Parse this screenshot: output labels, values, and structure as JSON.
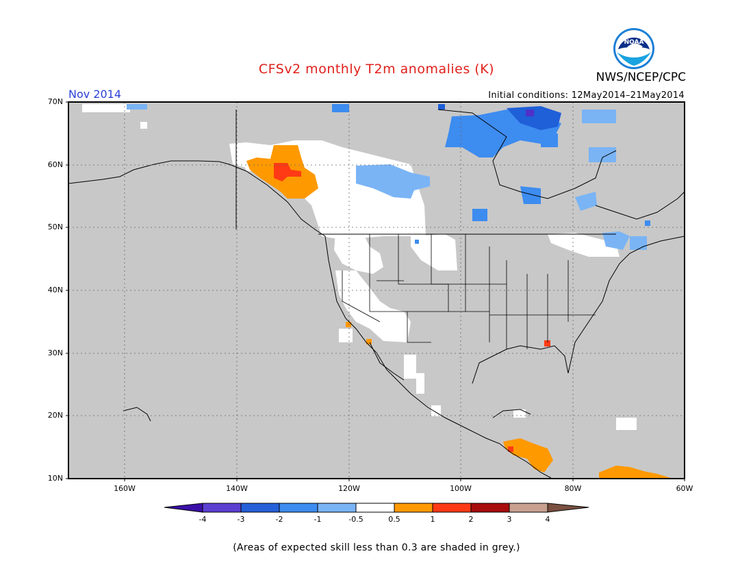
{
  "header": {
    "title": "CFSv2 monthly T2m anomalies (K)",
    "agency": "NWS/NCEP/CPC",
    "month": "Nov 2014",
    "initial_conditions": "Initial conditions: 12May2014–21May2014"
  },
  "logo": {
    "text": "NOAA",
    "icon": "noaa-logo"
  },
  "map": {
    "lat_labels": [
      "70N",
      "60N",
      "50N",
      "40N",
      "30N",
      "20N",
      "10N"
    ],
    "lon_labels": [
      "160W",
      "140W",
      "120W",
      "100W",
      "80W",
      "60W"
    ],
    "lat_range": [
      10,
      70
    ],
    "lon_range": [
      -170,
      -60
    ],
    "grid": true,
    "colors": {
      "ocean_land": "#c8c8c8",
      "white": "#ffffff",
      "blue_light": "#7ab4f5",
      "blue_mid": "#3d8cf0",
      "blue_dark": "#1f5fd8",
      "purple": "#5030c8",
      "orange": "#ff9900",
      "red_orange": "#ff3a14"
    },
    "anomaly_regions": [
      {
        "name": "alaska-orange",
        "category": "0.5 to 1"
      },
      {
        "name": "alaska-red",
        "category": "1 to 2"
      },
      {
        "name": "canada-white",
        "category": "-0.5 to 0.5"
      },
      {
        "name": "canada-light-blue",
        "category": "-1 to -0.5"
      },
      {
        "name": "hudson-blue",
        "category": "-2 to -1"
      },
      {
        "name": "arctic-dark-blue",
        "category": "-3 to -2"
      },
      {
        "name": "arctic-purple",
        "category": "-4 to -3"
      },
      {
        "name": "central-america-orange",
        "category": "0.5 to 1"
      },
      {
        "name": "south-america-orange",
        "category": "0.5 to 1"
      },
      {
        "name": "georgia-red",
        "category": "1 to 2"
      }
    ]
  },
  "colorbar": {
    "labels": [
      "-4",
      "-3",
      "-2",
      "-1",
      "-0.5",
      "0.5",
      "1",
      "2",
      "3",
      "4"
    ],
    "colors": [
      "#3a0fa8",
      "#5b3fd0",
      "#2560d8",
      "#3d8cf0",
      "#7ab4f5",
      "#ffffff",
      "#ff9900",
      "#ff3a14",
      "#a80c0c",
      "#c8a090",
      "#7a5040"
    ]
  },
  "footnote": "(Areas of expected skill less than 0.3 are shaded in grey.)"
}
